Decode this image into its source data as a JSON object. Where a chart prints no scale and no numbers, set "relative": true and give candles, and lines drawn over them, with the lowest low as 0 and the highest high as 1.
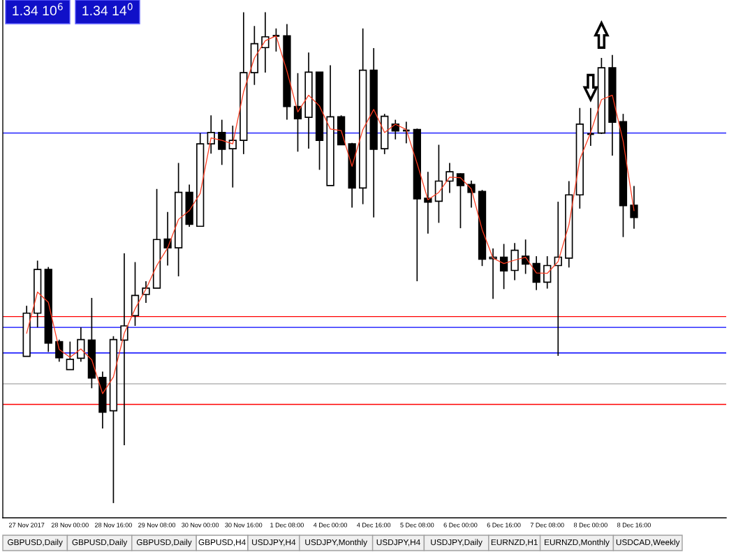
{
  "chart_data": {
    "type": "candlestick",
    "relative": true,
    "tick_labels": "x",
    "categories": [
      "27 Nov 2017",
      null,
      null,
      null,
      "28 Nov 00:00",
      null,
      null,
      null,
      "28 Nov 16:00",
      null,
      null,
      null,
      "29 Nov 08:00",
      null,
      null,
      null,
      "30 Nov 00:00",
      null,
      null,
      null,
      "30 Nov 16:00",
      null,
      null,
      null,
      "1 Dec 08:00",
      null,
      null,
      null,
      "4 Dec 00:00",
      null,
      null,
      null,
      "4 Dec 16:00",
      null,
      null,
      null,
      "5 Dec 08:00",
      null,
      null,
      null,
      "6 Dec 00:00",
      null,
      null,
      null,
      "6 Dec 16:00",
      null,
      null,
      null,
      "7 Dec 08:00",
      null,
      null,
      null,
      "8 Dec 00:00",
      null,
      null,
      null,
      "8 Dec 16:00"
    ],
    "ohlc": [
      [
        0.299,
        0.402,
        0.299,
        0.387
      ],
      [
        0.387,
        0.494,
        0.358,
        0.476
      ],
      [
        0.476,
        0.481,
        0.308,
        0.326
      ],
      [
        0.329,
        0.333,
        0.288,
        0.296
      ],
      [
        0.272,
        0.329,
        0.272,
        0.293
      ],
      [
        0.295,
        0.358,
        0.288,
        0.333
      ],
      [
        0.332,
        0.418,
        0.234,
        0.255
      ],
      [
        0.256,
        0.268,
        0.152,
        0.185
      ],
      [
        0.188,
        0.34,
        0,
        0.333
      ],
      [
        0.332,
        0.509,
        0.118,
        0.361
      ],
      [
        0.382,
        0.491,
        0.361,
        0.423
      ],
      [
        0.425,
        0.452,
        0.408,
        0.438
      ],
      [
        0.438,
        0.64,
        0.438,
        0.537
      ],
      [
        0.538,
        0.593,
        0.484,
        0.52
      ],
      [
        0.52,
        0.693,
        0.462,
        0.633
      ],
      [
        0.633,
        0.649,
        0.563,
        0.568
      ],
      [
        0.564,
        0.754,
        0.564,
        0.732
      ],
      [
        0.732,
        0.79,
        0.712,
        0.755
      ],
      [
        0.755,
        0.781,
        0.689,
        0.721
      ],
      [
        0.722,
        0.769,
        0.643,
        0.739
      ],
      [
        0.739,
        1.0,
        0.711,
        0.877
      ],
      [
        0.877,
        0.972,
        0.852,
        0.936
      ],
      [
        0.928,
        1.0,
        0.877,
        0.95
      ],
      [
        0.952,
        0.967,
        0.92,
        0.952
      ],
      [
        0.952,
        0.976,
        0.781,
        0.808
      ],
      [
        0.808,
        0.876,
        0.716,
        0.783
      ],
      [
        0.786,
        0.918,
        0.722,
        0.878
      ],
      [
        0.878,
        0.878,
        0.679,
        0.739
      ],
      [
        0.647,
        0.892,
        0.647,
        0.787
      ],
      [
        0.787,
        0.79,
        0.73,
        0.73
      ],
      [
        0.732,
        0.734,
        0.602,
        0.642
      ],
      [
        0.642,
        0.967,
        0.609,
        0.882
      ],
      [
        0.882,
        0.927,
        0.582,
        0.721
      ],
      [
        0.722,
        0.793,
        0.711,
        0.788
      ],
      [
        0.772,
        0.781,
        0.741,
        0.758
      ],
      [
        0.759,
        0.777,
        0.733,
        0.759
      ],
      [
        0.761,
        0.763,
        0.452,
        0.62
      ],
      [
        0.621,
        0.675,
        0.549,
        0.613
      ],
      [
        0.615,
        0.73,
        0.571,
        0.656
      ],
      [
        0.656,
        0.693,
        0.632,
        0.675
      ],
      [
        0.671,
        0.672,
        0.56,
        0.647
      ],
      [
        0.649,
        0.657,
        0.602,
        0.633
      ],
      [
        0.635,
        0.638,
        0.483,
        0.497
      ],
      [
        0.498,
        0.519,
        0.416,
        0.501
      ],
      [
        0.501,
        0.528,
        0.436,
        0.473
      ],
      [
        0.474,
        0.53,
        0.454,
        0.515
      ],
      [
        0.503,
        0.537,
        0.467,
        0.487
      ],
      [
        0.488,
        0.503,
        0.434,
        0.45
      ],
      [
        0.45,
        0.503,
        0.437,
        0.484
      ],
      [
        0.484,
        0.614,
        0.3,
        0.501
      ],
      [
        0.499,
        0.656,
        0.48,
        0.628
      ],
      [
        0.628,
        0.805,
        0.6,
        0.772
      ],
      [
        0.752,
        0.805,
        0.728,
        0.752
      ],
      [
        0.754,
        0.907,
        0.752,
        0.887
      ],
      [
        0.887,
        0.913,
        0.708,
        0.776
      ],
      [
        0.777,
        0.793,
        0.542,
        0.606
      ],
      [
        0.607,
        0.646,
        0.559,
        0.582
      ]
    ],
    "series": [
      {
        "type": "line",
        "color": "#ff3b1f",
        "values": [
          0.346,
          0.43,
          0.409,
          0.313,
          0.297,
          0.314,
          0.292,
          0.223,
          0.257,
          0.346,
          0.396,
          0.436,
          0.484,
          0.52,
          0.578,
          0.596,
          0.631,
          0.744,
          0.739,
          0.732,
          0.838,
          0.907,
          0.942,
          0.952,
          0.88,
          0.797,
          0.831,
          0.809,
          0.762,
          0.759,
          0.686,
          0.761,
          0.802,
          0.755,
          0.772,
          0.761,
          0.692,
          0.618,
          0.633,
          0.664,
          0.663,
          0.64,
          0.557,
          0.499,
          0.488,
          0.495,
          0.501,
          0.469,
          0.468,
          0.492,
          0.567,
          0.7,
          0.755,
          0.822,
          0.831,
          0.737,
          0.596
        ]
      }
    ],
    "ref_lines": [
      {
        "axis": "y",
        "value": 0.754,
        "color": "#0000ff"
      },
      {
        "axis": "y",
        "value": 0.38,
        "color": "#ff0000"
      },
      {
        "axis": "y",
        "value": 0.358,
        "color": "#0000ff"
      },
      {
        "axis": "y",
        "value": 0.306,
        "color": "#0000ff"
      },
      {
        "axis": "y",
        "value": 0.243,
        "color": "#b4b4b4"
      },
      {
        "axis": "y",
        "value": 0.201,
        "color": "#ff0000"
      }
    ],
    "annotations": [
      "1.34 10$^{6}$",
      "1.34 14$^{0}$",
      "GBPUSD,Daily",
      "GBPUSD,Daily",
      "GBPUSD,Daily",
      "GBPUSD,H4",
      "USDJPY,H4",
      "USDJPY,Monthly",
      "USDJPY,H4",
      "USDJPY,Daily",
      "EURNZD,H1",
      "EURNZD,Monthly",
      "USDCAD,Weekly"
    ]
  }
}
